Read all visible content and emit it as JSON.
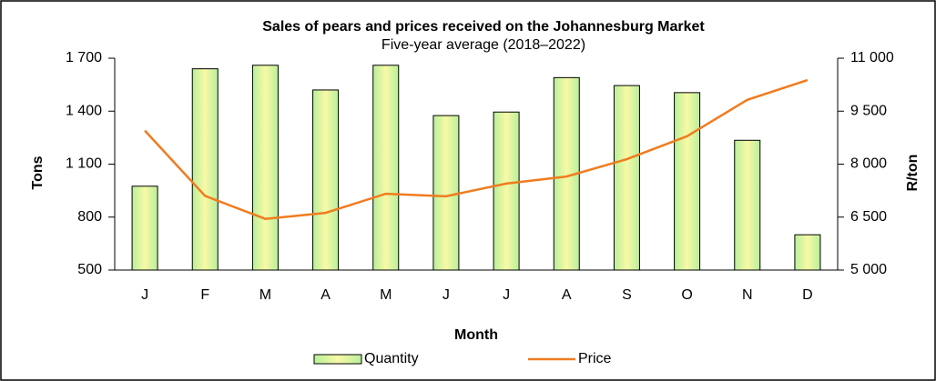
{
  "chart_data": {
    "type": "bar-line",
    "title": "Sales of pears and prices received on the Johannesburg Market",
    "subtitle": "Five-year average (2018–2022)",
    "x_label": "Month",
    "y_label": "Tons",
    "y2_label": "R/ton",
    "categories": [
      "J",
      "F",
      "M",
      "A",
      "M",
      "J",
      "J",
      "A",
      "S",
      "O",
      "N",
      "D"
    ],
    "series": [
      {
        "name": "Quantity",
        "type": "bar",
        "color": "#c6f0a0",
        "values": [
          975,
          1640,
          1660,
          1520,
          1660,
          1375,
          1395,
          1590,
          1545,
          1505,
          1235,
          700
        ]
      },
      {
        "name": "Price",
        "type": "line",
        "axis": "y2",
        "color": "#f07c1f",
        "values": [
          8950,
          7100,
          6450,
          6620,
          7160,
          7090,
          7450,
          7650,
          8140,
          8790,
          9820,
          10380
        ]
      }
    ],
    "ylim": [
      500,
      1700
    ],
    "yticks": [
      500,
      {
        "value": 800,
        "label": "800"
      },
      {
        "value": 1100,
        "label": "1 100"
      },
      {
        "value": 1400,
        "label": "1 400"
      },
      {
        "value": 1700,
        "label": "1 700"
      }
    ],
    "y2lim": [
      5000,
      11000
    ],
    "y2ticks": [
      {
        "value": 5000,
        "label": "5 000"
      },
      {
        "value": 6500,
        "label": "6 500"
      },
      {
        "value": 8000,
        "label": "8 000"
      },
      {
        "value": 9500,
        "label": "9 500"
      },
      {
        "value": 11000,
        "label": "11 000"
      }
    ],
    "legend": "bottom"
  }
}
